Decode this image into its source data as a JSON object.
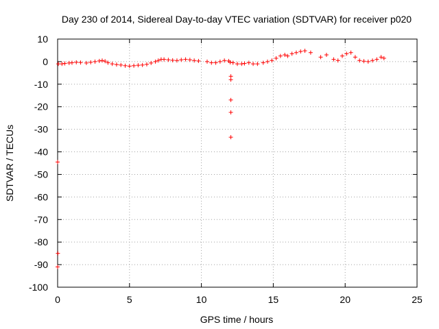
{
  "chart_data": {
    "type": "scatter",
    "title": "Day 230 of 2014, Sidereal Day-to-day VTEC variation (SDTVAR) for receiver p020",
    "xlabel": "GPS time / hours",
    "ylabel": "SDTVAR / TECUs",
    "xlim": [
      0,
      25
    ],
    "ylim": [
      -100,
      10
    ],
    "xticks": [
      0,
      5,
      10,
      15,
      20,
      25
    ],
    "yticks": [
      10,
      0,
      -10,
      -20,
      -30,
      -40,
      -50,
      -60,
      -70,
      -80,
      -90,
      -100
    ],
    "grid": true,
    "marker": "+",
    "series_color": "#ff0000",
    "series": [
      {
        "name": "SDTVAR",
        "x": [
          0.05,
          0.3,
          0.5,
          0.8,
          1.0,
          1.3,
          1.6,
          2.0,
          2.3,
          2.6,
          2.9,
          3.1,
          3.3,
          3.5,
          3.8,
          4.1,
          4.4,
          4.7,
          5.0,
          5.3,
          5.6,
          5.9,
          6.2,
          6.5,
          6.8,
          7.0,
          7.2,
          7.4,
          7.7,
          8.0,
          8.3,
          8.6,
          8.9,
          9.2,
          9.5,
          9.8,
          10.4,
          10.7,
          11.0,
          11.3,
          11.6,
          11.9,
          12.0,
          12.05,
          12.05,
          12.05,
          12.05,
          12.05,
          12.2,
          12.5,
          12.8,
          13.0,
          13.3,
          13.6,
          13.9,
          14.3,
          14.6,
          14.9,
          15.2,
          15.5,
          15.8,
          16.0,
          16.3,
          16.6,
          16.9,
          17.2,
          17.6,
          18.3,
          18.7,
          19.2,
          19.5,
          19.8,
          20.1,
          20.4,
          20.7,
          21.0,
          21.3,
          21.6,
          21.9,
          22.2,
          22.5,
          22.7,
          0.0,
          0.02,
          0.0
        ],
        "y": [
          -1.0,
          -1.0,
          -0.8,
          -0.6,
          -0.5,
          -0.3,
          -0.4,
          -0.6,
          -0.3,
          0.0,
          0.3,
          0.5,
          0.2,
          -0.5,
          -1.0,
          -1.3,
          -1.5,
          -1.8,
          -2.0,
          -1.8,
          -1.6,
          -1.5,
          -1.2,
          -0.6,
          0.0,
          0.5,
          1.0,
          1.0,
          0.8,
          0.6,
          0.5,
          0.8,
          1.0,
          0.8,
          0.5,
          0.3,
          0.0,
          -0.5,
          -0.5,
          0.0,
          0.5,
          0.3,
          -0.3,
          -6.5,
          -8.0,
          -17.0,
          -22.5,
          -33.5,
          -0.5,
          -1.0,
          -1.0,
          -0.8,
          -0.5,
          -1.0,
          -1.0,
          -0.5,
          0.0,
          0.5,
          1.5,
          2.5,
          3.0,
          2.5,
          3.5,
          4.0,
          4.5,
          4.8,
          4.0,
          2.0,
          3.0,
          1.0,
          0.5,
          2.5,
          3.5,
          4.0,
          2.0,
          0.5,
          0.2,
          0.0,
          0.5,
          1.0,
          2.0,
          1.5,
          -44.5,
          -85.0,
          -91.0
        ]
      }
    ]
  }
}
